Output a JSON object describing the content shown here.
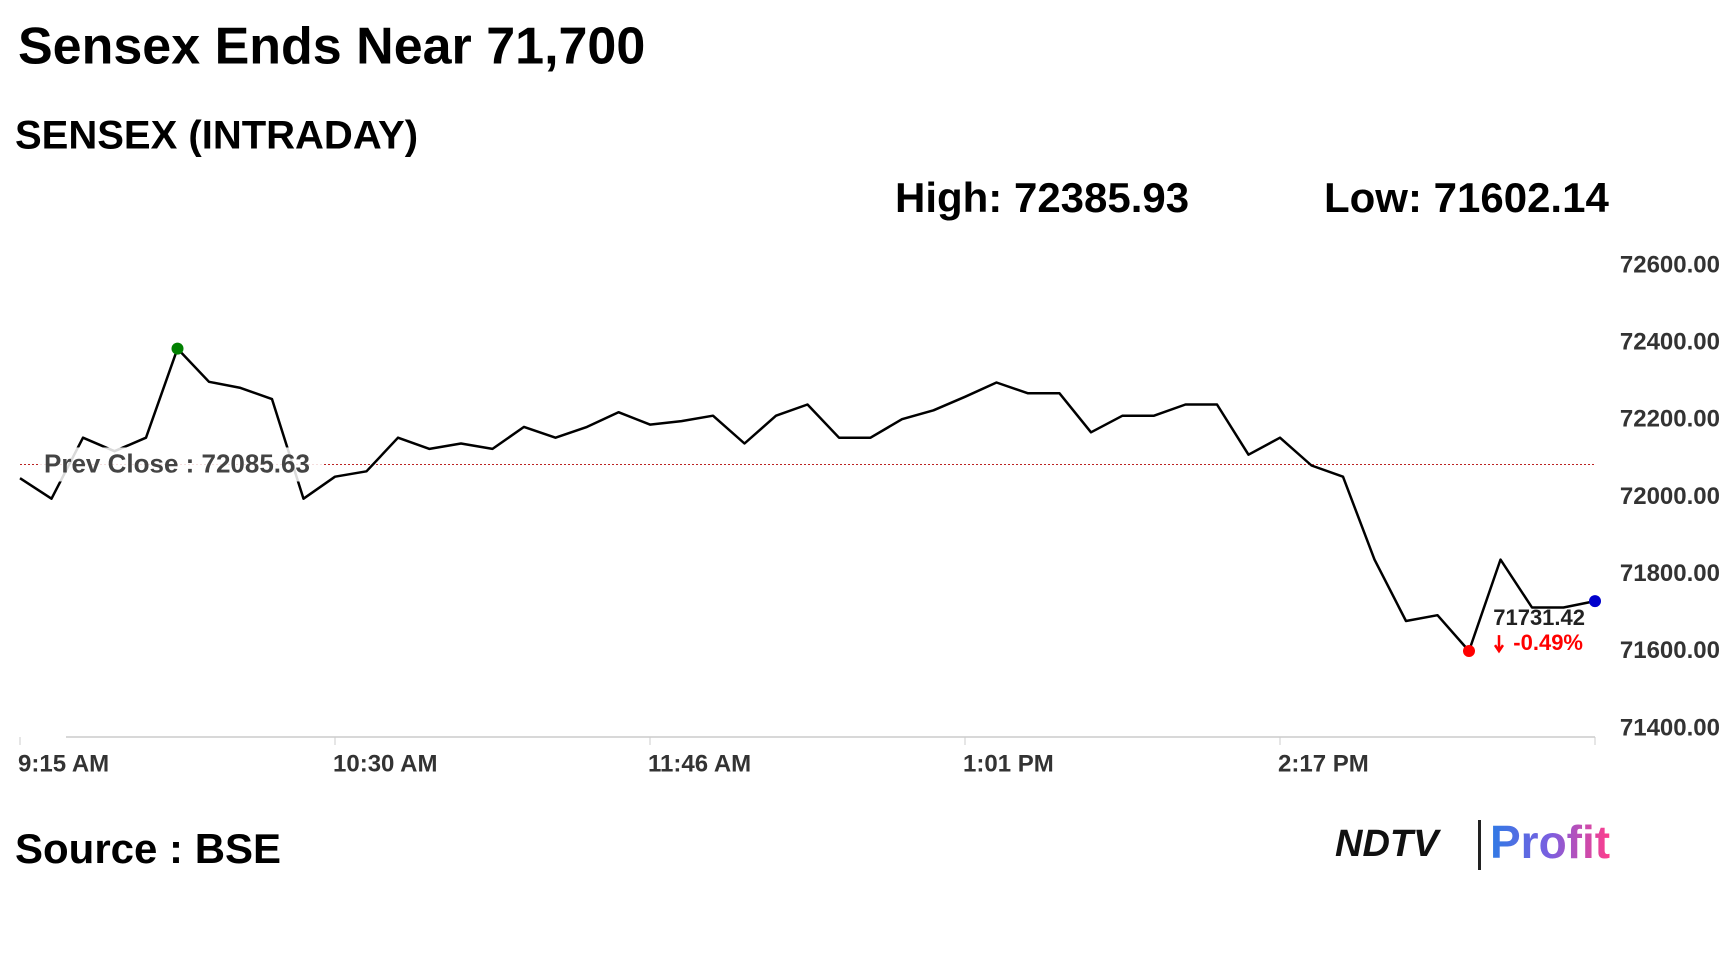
{
  "chart_data": {
    "type": "line",
    "title": "Sensex Ends Near 71,700",
    "subtitle": "SENSEX (INTRADAY)",
    "high_text": "High: 72385.93",
    "low_text": "Low: 71602.14",
    "source": "Source : BSE",
    "logo": {
      "left": "NDTV",
      "right": "Profit"
    },
    "categories": [
      "9:15 AM",
      null,
      null,
      null,
      null,
      null,
      null,
      null,
      null,
      null,
      "10:30 AM",
      null,
      null,
      null,
      null,
      null,
      null,
      null,
      null,
      null,
      "11:46 AM",
      null,
      null,
      null,
      null,
      null,
      null,
      null,
      null,
      null,
      "1:01 PM",
      null,
      null,
      null,
      null,
      null,
      null,
      null,
      null,
      null,
      "2:17 PM",
      null,
      null,
      null,
      null,
      null,
      null,
      null,
      null,
      null,
      null
    ],
    "series": [
      {
        "name": "SENSEX",
        "color": "#000000",
        "values": [
          72050,
          71997,
          72155,
          72120,
          72155,
          72385.93,
          72300,
          72284,
          72255,
          71997,
          72054,
          72068,
          72155,
          72126,
          72140,
          72126,
          72183,
          72155,
          72183,
          72221,
          72189,
          72198,
          72212,
          72140,
          72212,
          72241,
          72155,
          72155,
          72203,
          72226,
          72261,
          72298,
          72270,
          72270,
          72169,
          72212,
          72212,
          72241,
          72241,
          72111,
          72155,
          72083,
          72054,
          71839,
          71680,
          71695,
          71602.14,
          71839,
          71715,
          71715,
          71731.42
        ]
      }
    ],
    "prev_close": {
      "value": 72085.63,
      "label": "Prev Close : 72085.63"
    },
    "change": {
      "value": -0.49,
      "label": "-0.49%"
    },
    "high_color": "#008000",
    "low_color": "#ff0000",
    "last_color": "#0000cc",
    "ylim": [
      71400,
      72600
    ],
    "yticks": [
      {
        "value": 71400,
        "label": "71400.00"
      },
      {
        "value": 71600,
        "label": "71600.00"
      },
      {
        "value": 71800,
        "label": "71800.00"
      },
      {
        "value": 72000,
        "label": "72000.00"
      },
      {
        "value": 72200,
        "label": "72200.00"
      },
      {
        "value": 72400,
        "label": "72400.00"
      },
      {
        "value": 72600,
        "label": "72600.00"
      }
    ]
  }
}
